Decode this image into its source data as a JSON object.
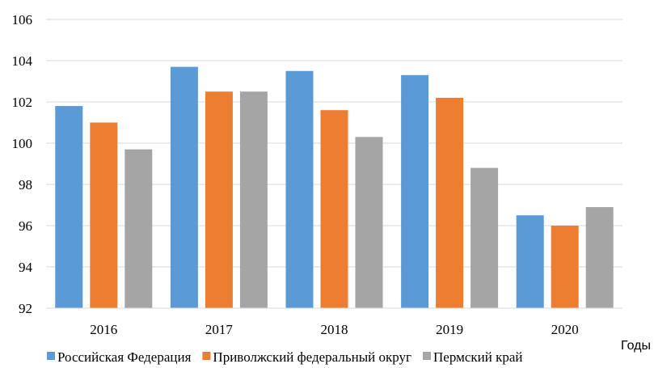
{
  "chart_data": {
    "type": "bar",
    "categories": [
      "2016",
      "2017",
      "2018",
      "2019",
      "2020"
    ],
    "series": [
      {
        "name": "Российская Федерация",
        "color": "#5B9BD5",
        "values": [
          101.8,
          103.7,
          103.5,
          103.3,
          96.5
        ]
      },
      {
        "name": "Приволжский федеральный округ",
        "color": "#ED7D31",
        "values": [
          101.0,
          102.5,
          101.6,
          102.2,
          96.0
        ]
      },
      {
        "name": "Пермский край",
        "color": "#A5A5A5",
        "values": [
          99.7,
          102.5,
          100.3,
          98.8,
          96.9
        ]
      }
    ],
    "xlabel": "Годы",
    "ylabel": "",
    "ylim": [
      92,
      106
    ],
    "yticks": [
      92,
      94,
      96,
      98,
      100,
      102,
      104,
      106
    ],
    "grid": true,
    "legend_position": "bottom"
  }
}
